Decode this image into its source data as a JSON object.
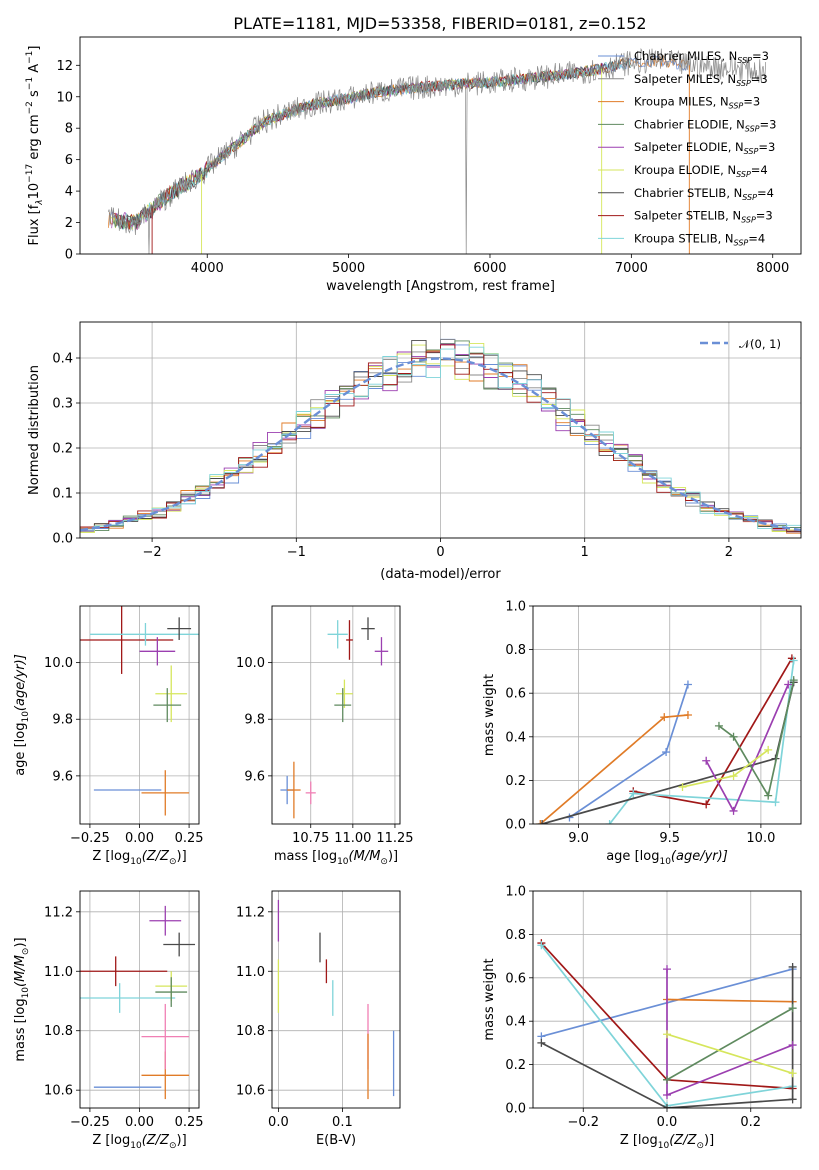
{
  "title": "PLATE=1181, MJD=53358, FIBERID=0181, z=0.152",
  "colors": {
    "Chabrier MILES": "#6a8fd6",
    "Salpeter MILES": "#8a8a8a",
    "Kroupa MILES": "#e07b27",
    "Chabrier ELODIE": "#5f8a5f",
    "Salpeter ELODIE": "#9b3fb0",
    "Kroupa ELODIE": "#d6e65c",
    "Chabrier STELIB": "#4a4a4a",
    "Salpeter STELIB": "#a01818",
    "Kroupa STELIB": "#7fd4d9",
    "gaussian": "#6a8fd6",
    "pink": "#f07fb4"
  },
  "chart_data": [
    {
      "type": "line",
      "xlabel": "wavelength [Angstrom, rest frame]",
      "ylabel_main": "Flux [f",
      "ylabel_lambda": "λ",
      "ylabel_10": "10",
      "ylabel_exp": "−17",
      "ylabel_units": " erg cm",
      "ylabel_m2": "−2",
      "ylabel_s": " s",
      "ylabel_m1a": "−1",
      "ylabel_A": " A",
      "ylabel_m1b": "−1",
      "ylabel_close": "]",
      "xlim": [
        3100,
        8200
      ],
      "ylim": [
        0,
        13.8
      ],
      "xticks": [
        "4000",
        "5000",
        "6000",
        "7000",
        "8000"
      ],
      "xtick_values": [
        4000,
        5000,
        6000,
        7000,
        8000
      ],
      "yticks": [
        "0",
        "2",
        "4",
        "6",
        "8",
        "10",
        "12"
      ],
      "ytick_values": [
        0,
        2,
        4,
        6,
        8,
        10,
        12
      ],
      "legend_placement": "upper-right",
      "legend": [
        {
          "label": "Chabrier MILES, N",
          "sub": "SSP",
          "tail": "=3"
        },
        {
          "label": "Salpeter MILES, N",
          "sub": "SSP",
          "tail": "=3"
        },
        {
          "label": "Kroupa MILES, N",
          "sub": "SSP",
          "tail": "=3"
        },
        {
          "label": "Chabrier ELODIE, N",
          "sub": "SSP",
          "tail": "=3"
        },
        {
          "label": "Salpeter ELODIE, N",
          "sub": "SSP",
          "tail": "=3"
        },
        {
          "label": "Kroupa ELODIE, N",
          "sub": "SSP",
          "tail": "=4"
        },
        {
          "label": "Chabrier STELIB, N",
          "sub": "SSP",
          "tail": "=4"
        },
        {
          "label": "Salpeter STELIB, N",
          "sub": "SSP",
          "tail": "=3"
        },
        {
          "label": "Kroupa STELIB, N",
          "sub": "SSP",
          "tail": "=4"
        }
      ],
      "continuum": {
        "x": [
          3300,
          3500,
          3650,
          3800,
          3950,
          4050,
          4200,
          4400,
          4600,
          4800,
          5000,
          5200,
          5500,
          5800,
          6000,
          6300,
          6600,
          6800,
          7000,
          7200,
          7400,
          7600,
          7800,
          7950
        ],
        "y": [
          2.2,
          2.0,
          3.2,
          4.2,
          5.0,
          5.8,
          6.9,
          8.4,
          9.1,
          9.6,
          9.9,
          10.3,
          10.6,
          10.8,
          10.9,
          11.2,
          11.5,
          11.8,
          12.2,
          12.3,
          12.0,
          11.9,
          11.8,
          11.5
        ]
      }
    },
    {
      "type": "step",
      "xlabel": "(data-model)/error",
      "ylabel": "Normed distribution",
      "xlim": [
        -2.5,
        2.5
      ],
      "ylim": [
        0,
        0.48
      ],
      "xticks": [
        "−2",
        "−1",
        "0",
        "1",
        "2"
      ],
      "xtick_values": [
        -2,
        -1,
        0,
        1,
        2
      ],
      "yticks": [
        "0.0",
        "0.1",
        "0.2",
        "0.3",
        "0.4"
      ],
      "ytick_values": [
        0,
        0.1,
        0.2,
        0.3,
        0.4
      ],
      "legend": [
        {
          "label": "𝒩(0, 1)"
        }
      ],
      "legend_placement": "upper-right",
      "bin_width": 0.1
    },
    {
      "type": "errorbar",
      "xlabel_main": "Z [log",
      "xlabel_sub": "10",
      "xlabel_tail": "(Z/Z",
      "xlabel_sun": "⊙",
      "xlabel_close": ")]",
      "ylabel_main": "age  [log",
      "ylabel_sub": "10",
      "ylabel_tail": "(age/yr)]",
      "xlim": [
        -0.3,
        0.3
      ],
      "ylim": [
        9.43,
        10.2
      ],
      "xticks": [
        "−0.25",
        "0.00",
        "0.25"
      ],
      "xtick_values": [
        -0.25,
        0,
        0.25
      ],
      "yticks": [
        "9.6",
        "9.8",
        "10.0"
      ],
      "ytick_values": [
        9.6,
        9.8,
        10.0
      ],
      "points": [
        {
          "model": "Chabrier MILES",
          "x": -0.06,
          "xerr": 0.17,
          "y": 9.55,
          "yerr": 0
        },
        {
          "model": "Kroupa MILES",
          "x": 0.13,
          "xerr": 0.12,
          "y": 9.54,
          "yerr": 0.08
        },
        {
          "model": "Salpeter STELIB",
          "x": -0.09,
          "xerr": 0.26,
          "y": 10.08,
          "yerr": 0.12
        },
        {
          "model": "Kroupa STELIB",
          "x": 0.03,
          "xerr": 0.28,
          "y": 10.1,
          "yerr": 0.04
        },
        {
          "model": "Salpeter ELODIE",
          "x": 0.09,
          "xerr": 0.09,
          "y": 10.04,
          "yerr": 0.05
        },
        {
          "model": "Chabrier STELIB",
          "x": 0.2,
          "xerr": 0.06,
          "y": 10.12,
          "yerr": 0.04
        },
        {
          "model": "Kroupa ELODIE",
          "x": 0.16,
          "xerr": 0.08,
          "y": 9.89,
          "yerr": 0.1
        },
        {
          "model": "Chabrier ELODIE",
          "x": 0.14,
          "xerr": 0.07,
          "y": 9.85,
          "yerr": 0.06
        }
      ]
    },
    {
      "type": "errorbar",
      "xlabel_main": "mass [log",
      "xlabel_sub": "10",
      "xlabel_tail": "(M/M",
      "xlabel_sun": "⊙",
      "xlabel_close": ")]",
      "xlim": [
        10.52,
        11.28
      ],
      "ylim": [
        9.43,
        10.2
      ],
      "xticks": [
        "10.75",
        "11.00",
        "11.25"
      ],
      "xtick_values": [
        10.75,
        11.0,
        11.25
      ],
      "yticks": [
        "9.6",
        "9.8",
        "10.0"
      ],
      "ytick_values": [
        9.6,
        9.8,
        10.0
      ],
      "points": [
        {
          "model": "Chabrier MILES",
          "x": 10.61,
          "xerr": 0.04,
          "y": 9.55,
          "yerr": 0.05
        },
        {
          "model": "Kroupa MILES",
          "x": 10.65,
          "xerr": 0.04,
          "y": 9.55,
          "yerr": 0.1
        },
        {
          "model": "pink",
          "x": 10.75,
          "xerr": 0.03,
          "y": 9.54,
          "yerr": 0.04
        },
        {
          "model": "Kroupa STELIB",
          "x": 10.91,
          "xerr": 0.06,
          "y": 10.1,
          "yerr": 0.05
        },
        {
          "model": "Salpeter STELIB",
          "x": 10.98,
          "xerr": 0.02,
          "y": 10.08,
          "yerr": 0.07
        },
        {
          "model": "Chabrier STELIB",
          "x": 11.09,
          "xerr": 0.04,
          "y": 10.12,
          "yerr": 0.04
        },
        {
          "model": "Salpeter ELODIE",
          "x": 11.17,
          "xerr": 0.04,
          "y": 10.04,
          "yerr": 0.05
        },
        {
          "model": "Kroupa ELODIE",
          "x": 10.95,
          "xerr": 0.05,
          "y": 9.89,
          "yerr": 0.05
        },
        {
          "model": "Chabrier ELODIE",
          "x": 10.94,
          "xerr": 0.05,
          "y": 9.85,
          "yerr": 0.06
        }
      ]
    },
    {
      "type": "line",
      "xlabel_main": "age  [log",
      "xlabel_sub": "10",
      "xlabel_tail": "(age/yr)]",
      "ylabel": "mass weight",
      "xlim": [
        8.75,
        10.22
      ],
      "ylim": [
        0,
        1.0
      ],
      "xticks": [
        "9.0",
        "9.5",
        "10.0"
      ],
      "xtick_values": [
        9.0,
        9.5,
        10.0
      ],
      "yticks": [
        "0.0",
        "0.2",
        "0.4",
        "0.6",
        "0.8",
        "1.0"
      ],
      "ytick_values": [
        0,
        0.2,
        0.4,
        0.6,
        0.8,
        1.0
      ],
      "series": [
        {
          "model": "Chabrier MILES",
          "x": [
            8.95,
            9.48,
            9.6
          ],
          "y": [
            0.03,
            0.33,
            0.64
          ]
        },
        {
          "model": "Kroupa MILES",
          "x": [
            8.79,
            9.47,
            9.6
          ],
          "y": [
            0.0,
            0.49,
            0.5
          ]
        },
        {
          "model": "Salpeter STELIB",
          "x": [
            9.3,
            9.7,
            10.17
          ],
          "y": [
            0.15,
            0.09,
            0.76
          ]
        },
        {
          "model": "Kroupa STELIB",
          "x": [
            9.17,
            9.3,
            10.08,
            10.18
          ],
          "y": [
            0.0,
            0.14,
            0.1,
            0.75
          ]
        },
        {
          "model": "Chabrier STELIB",
          "x": [
            8.8,
            10.08,
            10.18
          ],
          "y": [
            0.0,
            0.3,
            0.65
          ]
        },
        {
          "model": "Salpeter ELODIE",
          "x": [
            9.7,
            9.85,
            10.15
          ],
          "y": [
            0.29,
            0.06,
            0.64
          ]
        },
        {
          "model": "Chabrier ELODIE",
          "x": [
            9.77,
            9.85,
            10.04,
            10.18
          ],
          "y": [
            0.45,
            0.4,
            0.13,
            0.66
          ]
        },
        {
          "model": "Kroupa ELODIE",
          "x": [
            9.57,
            9.85,
            10.04
          ],
          "y": [
            0.17,
            0.22,
            0.34
          ]
        }
      ]
    },
    {
      "type": "errorbar",
      "xlabel_main": "Z [log",
      "xlabel_sub": "10",
      "xlabel_tail": "(Z/Z",
      "xlabel_sun": "⊙",
      "xlabel_close": ")]",
      "ylabel_main": "mass [log",
      "ylabel_sub": "10",
      "ylabel_tail": "(M/M",
      "ylabel_sun": "⊙",
      "ylabel_close": ")]",
      "xlim": [
        -0.3,
        0.3
      ],
      "ylim": [
        10.54,
        11.27
      ],
      "xticks": [
        "−0.25",
        "0.00",
        "0.25"
      ],
      "xtick_values": [
        -0.25,
        0,
        0.25
      ],
      "yticks": [
        "10.6",
        "10.8",
        "11.0",
        "11.2"
      ],
      "ytick_values": [
        10.6,
        10.8,
        11.0,
        11.2
      ],
      "points": [
        {
          "model": "Chabrier MILES",
          "x": -0.06,
          "xerr": 0.17,
          "y": 10.61,
          "yerr": 0
        },
        {
          "model": "Kroupa MILES",
          "x": 0.13,
          "xerr": 0.12,
          "y": 10.65,
          "yerr": 0.08
        },
        {
          "model": "pink",
          "x": 0.13,
          "xerr": 0.12,
          "y": 10.78,
          "yerr": 0.11
        },
        {
          "model": "Kroupa STELIB",
          "x": -0.1,
          "xerr": 0.28,
          "y": 10.91,
          "yerr": 0.05
        },
        {
          "model": "Salpeter STELIB",
          "x": -0.12,
          "xerr": 0.26,
          "y": 11.0,
          "yerr": 0.05
        },
        {
          "model": "Salpeter ELODIE",
          "x": 0.13,
          "xerr": 0.08,
          "y": 11.17,
          "yerr": 0.05
        },
        {
          "model": "Chabrier STELIB",
          "x": 0.2,
          "xerr": 0.08,
          "y": 11.09,
          "yerr": 0.04
        },
        {
          "model": "Kroupa ELODIE",
          "x": 0.16,
          "xerr": 0.08,
          "y": 10.95,
          "yerr": 0.05
        },
        {
          "model": "Chabrier ELODIE",
          "x": 0.16,
          "xerr": 0.08,
          "y": 10.93,
          "yerr": 0.05
        }
      ]
    },
    {
      "type": "errorbar",
      "xlabel": "E(B-V)",
      "xlim": [
        -0.01,
        0.19
      ],
      "ylim": [
        10.54,
        11.27
      ],
      "xticks": [
        "0.0",
        "0.1"
      ],
      "xtick_values": [
        0.0,
        0.1
      ],
      "yticks": [
        "10.6",
        "10.8",
        "11.0",
        "11.2"
      ],
      "ytick_values": [
        10.6,
        10.8,
        11.0,
        11.2
      ],
      "points": [
        {
          "model": "Salpeter ELODIE",
          "x": 0.0,
          "xerr": 0,
          "y": 11.17,
          "yerr": 0.07
        },
        {
          "model": "Kroupa ELODIE",
          "x": 0.0,
          "xerr": 0,
          "y": 10.95,
          "yerr": 0.09
        },
        {
          "model": "Chabrier STELIB",
          "x": 0.065,
          "xerr": 0,
          "y": 11.08,
          "yerr": 0.05
        },
        {
          "model": "Salpeter STELIB",
          "x": 0.075,
          "xerr": 0,
          "y": 11.0,
          "yerr": 0.04
        },
        {
          "model": "Kroupa STELIB",
          "x": 0.085,
          "xerr": 0,
          "y": 10.91,
          "yerr": 0.06
        },
        {
          "model": "pink",
          "x": 0.14,
          "xerr": 0,
          "y": 10.78,
          "yerr": 0.11
        },
        {
          "model": "Kroupa MILES",
          "x": 0.14,
          "xerr": 0,
          "y": 10.68,
          "yerr": 0.11
        },
        {
          "model": "Chabrier MILES",
          "x": 0.18,
          "xerr": 0,
          "y": 10.69,
          "yerr": 0.11
        }
      ]
    },
    {
      "type": "line",
      "xlabel_main": "Z [log",
      "xlabel_sub": "10",
      "xlabel_tail": "(Z/Z",
      "xlabel_sun": "⊙",
      "xlabel_close": ")]",
      "ylabel": "mass weight",
      "xlim": [
        -0.32,
        0.32
      ],
      "ylim": [
        0,
        1.0
      ],
      "xticks": [
        "−0.2",
        "0.0",
        "0.2"
      ],
      "xtick_values": [
        -0.2,
        0.0,
        0.2
      ],
      "yticks": [
        "0.0",
        "0.2",
        "0.4",
        "0.6",
        "0.8",
        "1.0"
      ],
      "ytick_values": [
        0,
        0.2,
        0.4,
        0.6,
        0.8,
        1.0
      ],
      "series": [
        {
          "model": "Chabrier MILES",
          "x": [
            -0.3,
            0.3
          ],
          "y": [
            0.33,
            0.64
          ]
        },
        {
          "model": "Kroupa MILES",
          "x": [
            0.0,
            0.3
          ],
          "y": [
            0.5,
            0.49
          ]
        },
        {
          "model": "Salpeter STELIB",
          "x": [
            -0.3,
            0.0,
            0.3
          ],
          "y": [
            0.76,
            0.13,
            0.09
          ]
        },
        {
          "model": "Kroupa STELIB",
          "x": [
            -0.3,
            0.0,
            0.3
          ],
          "y": [
            0.75,
            0.01,
            0.1
          ]
        },
        {
          "model": "Chabrier STELIB",
          "x": [
            -0.3,
            0.0,
            0.3,
            0.3
          ],
          "y": [
            0.3,
            0.0,
            0.04,
            0.65
          ]
        },
        {
          "model": "Salpeter ELODIE",
          "x": [
            0.0,
            0.0,
            0.3
          ],
          "y": [
            0.64,
            0.06,
            0.29
          ]
        },
        {
          "model": "Chabrier ELODIE",
          "x": [
            0.0,
            0.3
          ],
          "y": [
            0.13,
            0.46
          ]
        },
        {
          "model": "Kroupa ELODIE",
          "x": [
            0.0,
            0.3
          ],
          "y": [
            0.34,
            0.16
          ]
        }
      ]
    }
  ]
}
